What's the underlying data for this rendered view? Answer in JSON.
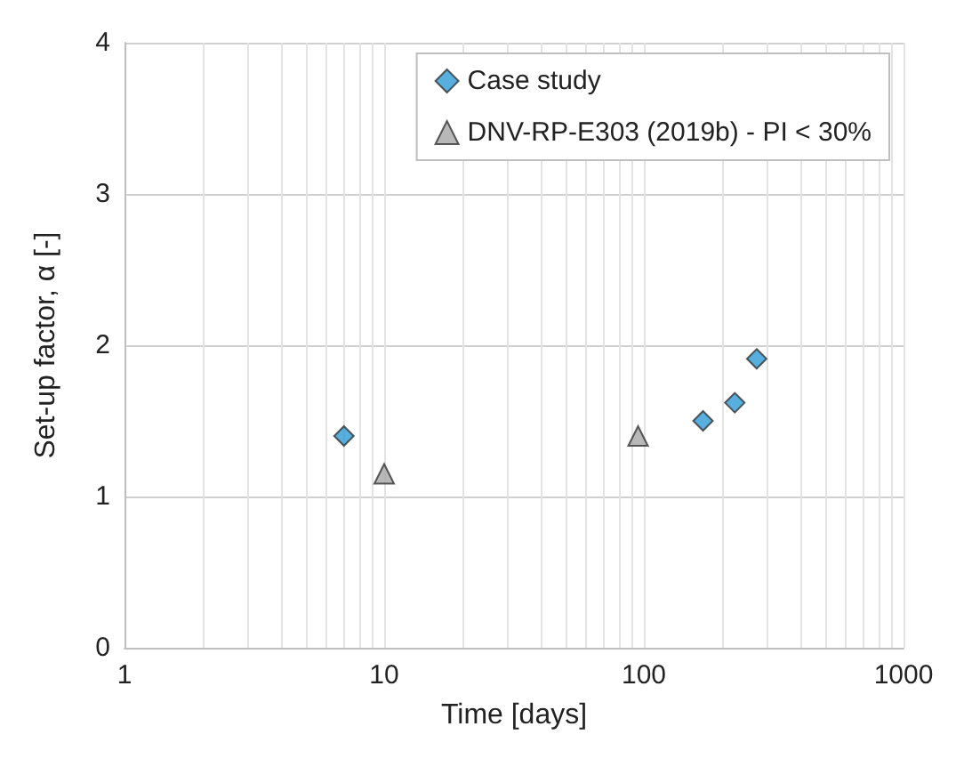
{
  "chart_data": {
    "type": "scatter",
    "xlabel": "Time [days]",
    "ylabel": "Set-up factor, α [-]",
    "log": "x",
    "xlim": [
      1,
      1000
    ],
    "xticks": [
      1,
      10,
      100,
      1000
    ],
    "ylim": [
      0,
      4
    ],
    "yticks": [
      0,
      1,
      2,
      3,
      4
    ],
    "grid": true,
    "legend": "top right",
    "series": [
      {
        "name": "Case study",
        "color": "#2e9bd6",
        "marker": "diamond",
        "x": [
          7,
          169,
          224,
          272
        ],
        "values": [
          1.4,
          1.5,
          1.62,
          1.91
        ]
      },
      {
        "name": "DNV-RP-E303 (2019b) - PI < 30%",
        "color": "#a6a6a6",
        "marker": "triangle",
        "x": [
          10,
          95
        ],
        "values": [
          1.15,
          1.4
        ]
      }
    ]
  }
}
